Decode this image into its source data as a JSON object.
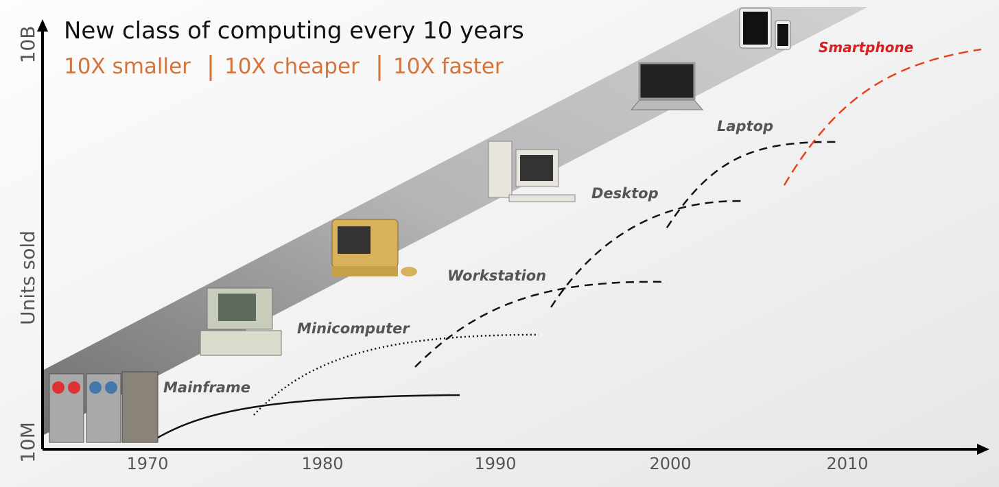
{
  "header": {
    "title": "New class of computing every 10 years",
    "subtitle": [
      "10X smaller",
      "10X cheaper",
      "10X faster"
    ]
  },
  "axes": {
    "y_top": "10B",
    "y_label": "Units sold",
    "y_bottom": "10M",
    "x_ticks": [
      "1970",
      "1980",
      "1990",
      "2000",
      "2010"
    ]
  },
  "classes": [
    "Mainframe",
    "Minicomputer",
    "Workstation",
    "Desktop",
    "Laptop",
    "Smartphone"
  ]
}
